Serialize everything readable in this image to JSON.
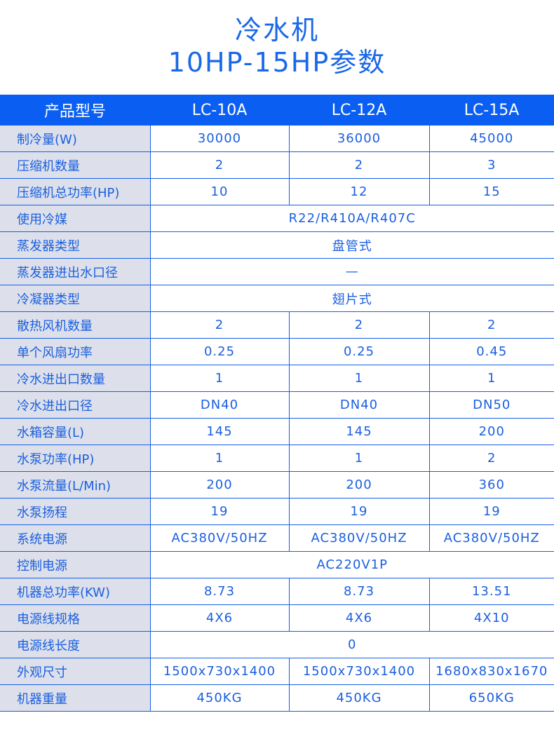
{
  "title": {
    "line1": "冷水机",
    "line2": "10HP-15HP参数"
  },
  "header": [
    "产品型号",
    "LC-10A",
    "LC-12A",
    "LC-15A"
  ],
  "rows": [
    {
      "label": "制冷量(W)",
      "values": [
        "30000",
        "36000",
        "45000"
      ]
    },
    {
      "label": "压缩机数量",
      "values": [
        "2",
        "2",
        "3"
      ]
    },
    {
      "label": "压缩机总功率(HP)",
      "values": [
        "10",
        "12",
        "15"
      ]
    },
    {
      "label": "使用冷媒",
      "merged": "R22/R410A/R407C"
    },
    {
      "label": "蒸发器类型",
      "merged": "盘管式"
    },
    {
      "label": "蒸发器进出水口径",
      "merged": "—"
    },
    {
      "label": "冷凝器类型",
      "merged": "翅片式"
    },
    {
      "label": "散热风机数量",
      "values": [
        "2",
        "2",
        "2"
      ]
    },
    {
      "label": "单个风扇功率",
      "values": [
        "0.25",
        "0.25",
        "0.45"
      ]
    },
    {
      "label": "冷水进出口数量",
      "values": [
        "1",
        "1",
        "1"
      ]
    },
    {
      "label": "冷水进出口径",
      "values": [
        "DN40",
        "DN40",
        "DN50"
      ]
    },
    {
      "label": "水箱容量(L)",
      "values": [
        "145",
        "145",
        "200"
      ]
    },
    {
      "label": "水泵功率(HP)",
      "values": [
        "1",
        "1",
        "2"
      ]
    },
    {
      "label": "水泵流量(L/Min)",
      "values": [
        "200",
        "200",
        "360"
      ]
    },
    {
      "label": "水泵扬程",
      "values": [
        "19",
        "19",
        "19"
      ]
    },
    {
      "label": "系统电源",
      "values": [
        "AC380V/50HZ",
        "AC380V/50HZ",
        "AC380V/50HZ"
      ]
    },
    {
      "label": "控制电源",
      "merged": "AC220V1P"
    },
    {
      "label": "机器总功率(KW)",
      "values": [
        "8.73",
        "8.73",
        "13.51"
      ]
    },
    {
      "label": "电源线规格",
      "values": [
        "4X6",
        "4X6",
        "4X10"
      ]
    },
    {
      "label": "电源线长度",
      "merged": "0"
    },
    {
      "label": "外观尺寸",
      "values": [
        "1500x730x1400",
        "1500x730x1400",
        "1680x830x1670"
      ]
    },
    {
      "label": "机器重量",
      "values": [
        "450KG",
        "450KG",
        "650KG"
      ]
    }
  ]
}
